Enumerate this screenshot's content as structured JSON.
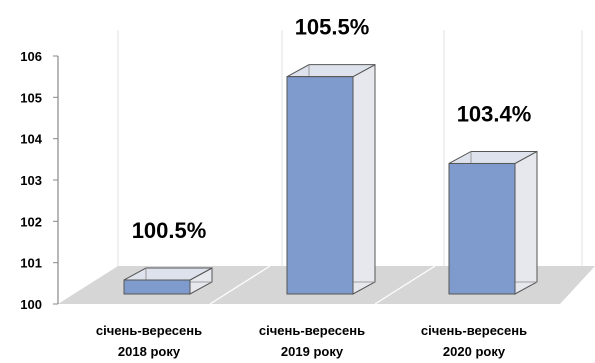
{
  "chart_data": {
    "type": "bar",
    "style": "3d-column",
    "categories": [
      [
        "січень-вересень",
        "2018 року"
      ],
      [
        "січень-вересень",
        "2019 року"
      ],
      [
        "січень-вересень",
        "2020 року"
      ]
    ],
    "values": [
      100.5,
      105.5,
      103.4
    ],
    "data_labels": [
      "100.5%",
      "105.5%",
      "103.4%"
    ],
    "ylim": [
      100,
      106
    ],
    "yticks": [
      100,
      101,
      102,
      103,
      104,
      105,
      106
    ],
    "title": "",
    "xlabel": "",
    "ylabel": "",
    "grid": true,
    "legend": "none",
    "colors": {
      "bar_front": "#7f9acc",
      "bar_top": "#dde2ec",
      "bar_glass": "#e6e8ee",
      "bar_edge": "#555555",
      "floor": "#d6d6d6",
      "gridline": "#e2e2e2"
    }
  }
}
